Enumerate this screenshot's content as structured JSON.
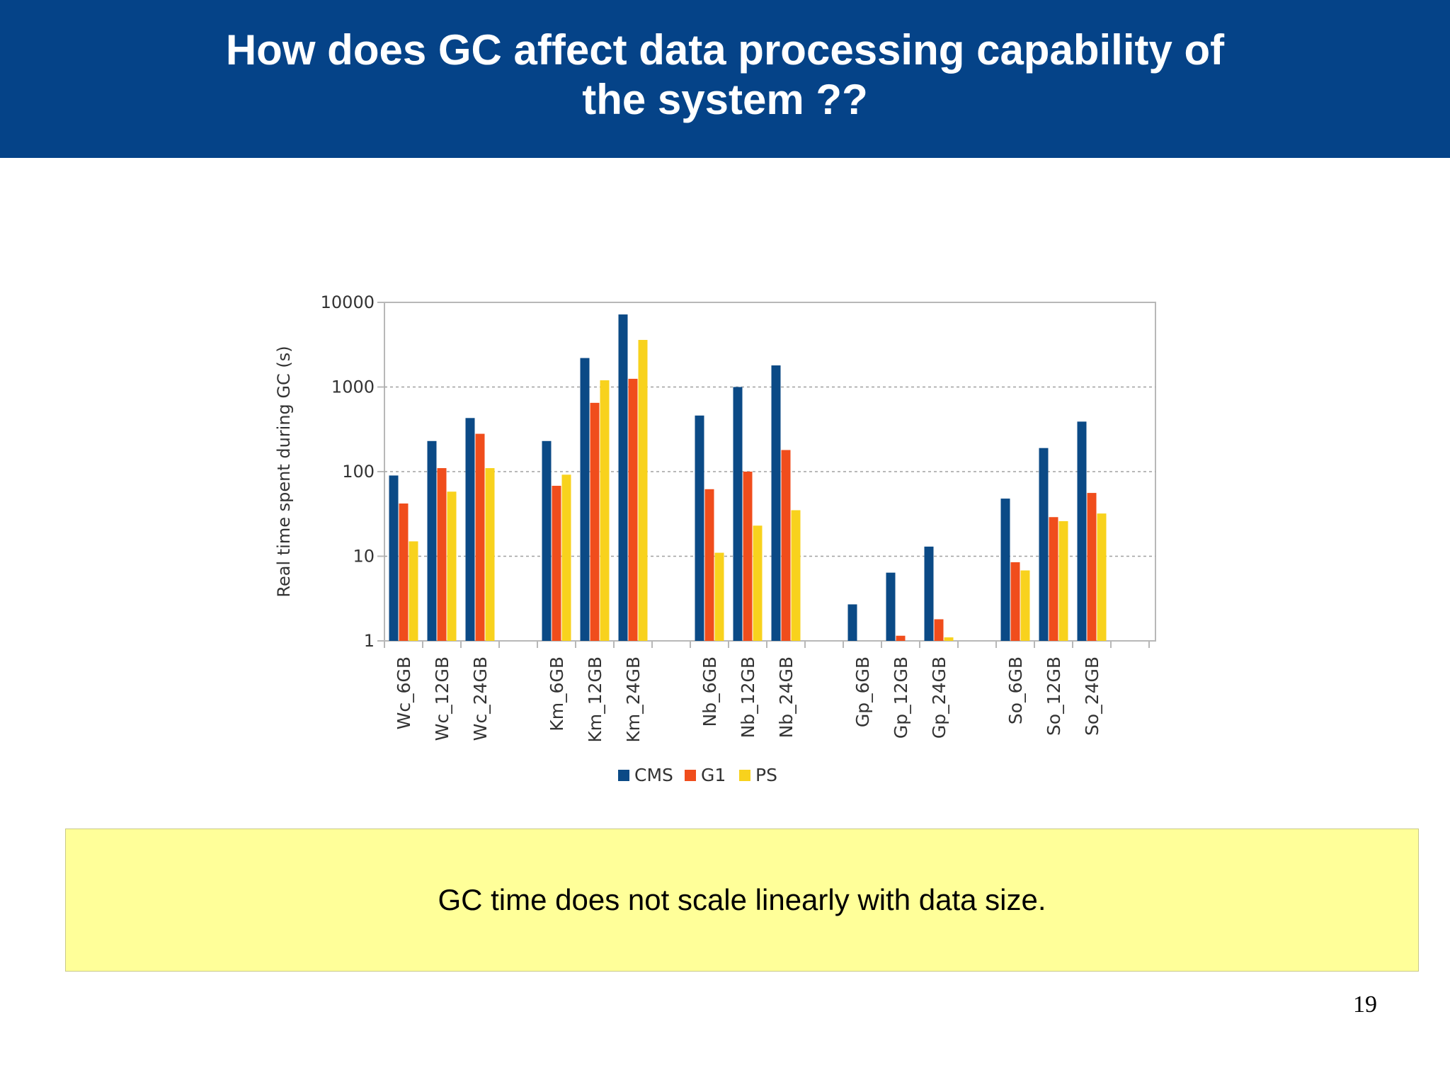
{
  "slide": {
    "title_line1": "How does GC affect data processing capability of",
    "title_line2": "the system ??",
    "callout_text": "GC time does not scale linearly with data size.",
    "page_number": "19"
  },
  "colors": {
    "header_bg": "#054388",
    "callout_bg": "#ffff99",
    "CMS": "#0b4a86",
    "G1": "#f04d1c",
    "PS": "#f8d21d"
  },
  "chart_data": {
    "type": "bar",
    "title": "",
    "xlabel": "",
    "ylabel": "Real time spent during GC (s)",
    "yscale": "log",
    "ylim": [
      1,
      10000
    ],
    "yticks": [
      "1",
      "10",
      "100",
      "1000",
      "10000"
    ],
    "grid": "horizontal dashed",
    "legend_position": "bottom-center",
    "categories": [
      "Wc_6GB",
      "Wc_12GB",
      "Wc_24GB",
      "Km_6GB",
      "Km_12GB",
      "Km_24GB",
      "Nb_6GB",
      "Nb_12GB",
      "Nb_24GB",
      "Gp_6GB",
      "Gp_12GB",
      "Gp_24GB",
      "So_6GB",
      "So_12GB",
      "So_24GB"
    ],
    "groups": [
      3,
      3,
      3,
      3,
      3
    ],
    "series": [
      {
        "name": "CMS",
        "values": [
          90,
          230,
          430,
          230,
          2200,
          7200,
          460,
          1000,
          1800,
          2.7,
          6.4,
          13,
          48,
          190,
          390
        ]
      },
      {
        "name": "G1",
        "values": [
          42,
          110,
          280,
          68,
          650,
          1250,
          62,
          100,
          180,
          1,
          1.15,
          1.8,
          8.5,
          29,
          56
        ]
      },
      {
        "name": "PS",
        "values": [
          15,
          58,
          110,
          92,
          1200,
          3600,
          11,
          23,
          35,
          1,
          1,
          1.1,
          6.8,
          26,
          32
        ]
      }
    ]
  }
}
